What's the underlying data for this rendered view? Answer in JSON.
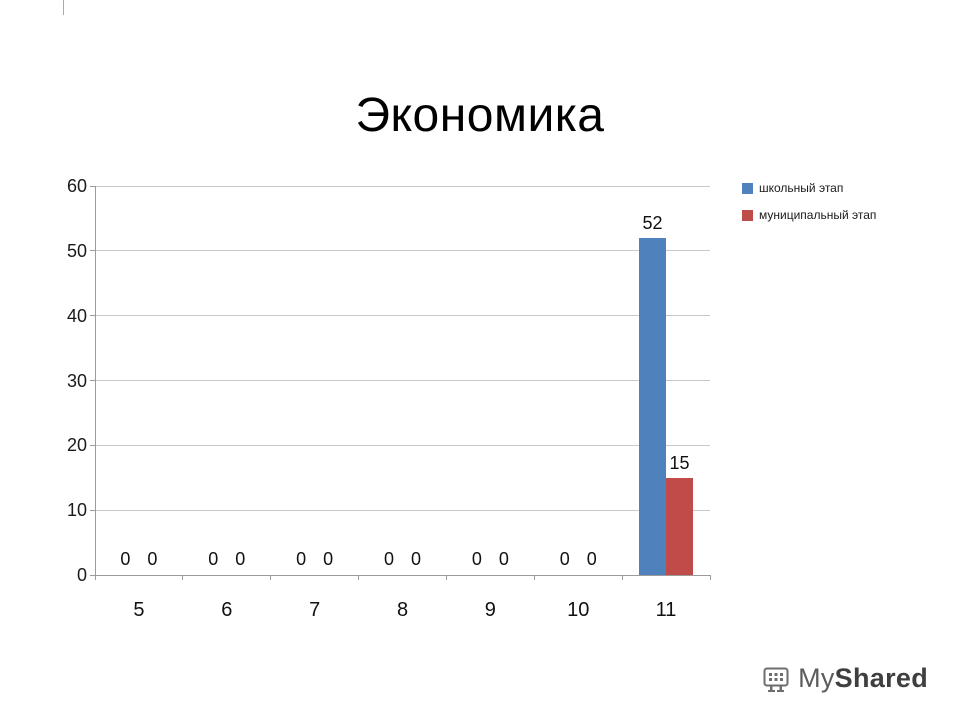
{
  "slide": {
    "title": "Экономика"
  },
  "watermark": {
    "prefix": "My",
    "suffix": "Shared"
  },
  "chart_data": {
    "type": "bar",
    "title": "",
    "categories": [
      "5",
      "6",
      "7",
      "8",
      "9",
      "10",
      "11"
    ],
    "series": [
      {
        "name": "школьный этап",
        "color": "#4f81bd",
        "values": [
          0,
          0,
          0,
          0,
          0,
          0,
          52
        ]
      },
      {
        "name": "муниципальный этап",
        "color": "#bf4c48",
        "values": [
          0,
          0,
          0,
          0,
          0,
          0,
          15
        ]
      }
    ],
    "xlabel": "",
    "ylabel": "",
    "ylim": [
      0,
      60
    ],
    "ytick_step": 10,
    "grid": true,
    "legend_position": "top-right"
  }
}
